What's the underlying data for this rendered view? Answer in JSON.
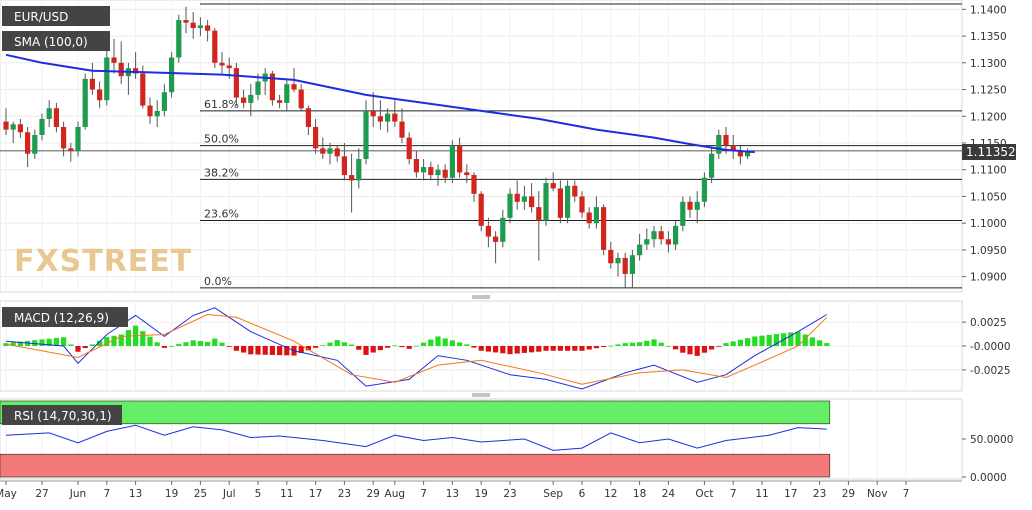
{
  "chart_data": [
    {
      "type": "candlestick",
      "symbol_label": "EUR/USD",
      "indicator_label": "SMA (100,0)",
      "watermark": "FXSTREET",
      "last_price_label": "1.11352",
      "last_price": 1.11352,
      "ylim": [
        1.0875,
        1.141
      ],
      "y_ticks": [
        "1.1400",
        "1.1350",
        "1.1300",
        "1.1250",
        "1.1200",
        "1.1150",
        "1.1100",
        "1.1050",
        "1.1000",
        "1.0950",
        "1.0900"
      ],
      "fib_levels": [
        {
          "label": "61.8%",
          "value": 1.121
        },
        {
          "label": "50.0%",
          "value": 1.1145
        },
        {
          "label": "38.2%",
          "value": 1.1082
        },
        {
          "label": "23.6%",
          "value": 1.1005
        },
        {
          "label": "0.0%",
          "value": 1.0879
        }
      ],
      "candles": [
        [
          1.119,
          1.1215,
          1.1165,
          1.1175
        ],
        [
          1.1175,
          1.119,
          1.115,
          1.1185
        ],
        [
          1.1185,
          1.1195,
          1.116,
          1.117
        ],
        [
          1.117,
          1.118,
          1.1105,
          1.113
        ],
        [
          1.113,
          1.1175,
          1.112,
          1.1165
        ],
        [
          1.1165,
          1.1205,
          1.1155,
          1.1195
        ],
        [
          1.1195,
          1.123,
          1.118,
          1.1215
        ],
        [
          1.1215,
          1.1225,
          1.117,
          1.118
        ],
        [
          1.118,
          1.119,
          1.1125,
          1.114
        ],
        [
          1.114,
          1.115,
          1.1115,
          1.1135
        ],
        [
          1.1135,
          1.119,
          1.1125,
          1.118
        ],
        [
          1.118,
          1.128,
          1.1175,
          1.127
        ],
        [
          1.127,
          1.13,
          1.124,
          1.125
        ],
        [
          1.125,
          1.1265,
          1.1215,
          1.123
        ],
        [
          1.123,
          1.133,
          1.122,
          1.131
        ],
        [
          1.131,
          1.1345,
          1.128,
          1.13
        ],
        [
          1.13,
          1.134,
          1.126,
          1.1275
        ],
        [
          1.1275,
          1.13,
          1.124,
          1.129
        ],
        [
          1.129,
          1.132,
          1.127,
          1.128
        ],
        [
          1.128,
          1.1295,
          1.1215,
          1.122
        ],
        [
          1.122,
          1.1235,
          1.1185,
          1.12
        ],
        [
          1.12,
          1.123,
          1.118,
          1.121
        ],
        [
          1.121,
          1.126,
          1.12,
          1.1245
        ],
        [
          1.1245,
          1.132,
          1.1235,
          1.131
        ],
        [
          1.131,
          1.139,
          1.13,
          1.138
        ],
        [
          1.138,
          1.1405,
          1.1355,
          1.1375
        ],
        [
          1.1375,
          1.1395,
          1.1345,
          1.1365
        ],
        [
          1.1365,
          1.1385,
          1.135,
          1.137
        ],
        [
          1.137,
          1.138,
          1.134,
          1.136
        ],
        [
          1.136,
          1.1365,
          1.129,
          1.13
        ],
        [
          1.13,
          1.132,
          1.128,
          1.1295
        ],
        [
          1.1295,
          1.131,
          1.127,
          1.129
        ],
        [
          1.129,
          1.13,
          1.122,
          1.1235
        ],
        [
          1.1235,
          1.125,
          1.1215,
          1.1225
        ],
        [
          1.1225,
          1.126,
          1.12,
          1.124
        ],
        [
          1.124,
          1.128,
          1.123,
          1.1265
        ],
        [
          1.1265,
          1.129,
          1.124,
          1.128
        ],
        [
          1.128,
          1.1285,
          1.122,
          1.123
        ],
        [
          1.123,
          1.124,
          1.1215,
          1.1225
        ],
        [
          1.1225,
          1.127,
          1.121,
          1.126
        ],
        [
          1.126,
          1.129,
          1.1245,
          1.125
        ],
        [
          1.125,
          1.126,
          1.121,
          1.1215
        ],
        [
          1.1215,
          1.122,
          1.1165,
          1.118
        ],
        [
          1.118,
          1.1195,
          1.113,
          1.114
        ],
        [
          1.114,
          1.116,
          1.112,
          1.113
        ],
        [
          1.113,
          1.115,
          1.111,
          1.114
        ],
        [
          1.114,
          1.1145,
          1.1115,
          1.1125
        ],
        [
          1.1125,
          1.115,
          1.108,
          1.109
        ],
        [
          1.109,
          1.113,
          1.102,
          1.108
        ],
        [
          1.108,
          1.114,
          1.1065,
          1.112
        ],
        [
          1.112,
          1.123,
          1.111,
          1.121
        ],
        [
          1.121,
          1.1245,
          1.118,
          1.12
        ],
        [
          1.12,
          1.123,
          1.1175,
          1.119
        ],
        [
          1.119,
          1.1215,
          1.117,
          1.1205
        ],
        [
          1.1205,
          1.123,
          1.118,
          1.119
        ],
        [
          1.119,
          1.1215,
          1.115,
          1.116
        ],
        [
          1.116,
          1.117,
          1.111,
          1.112
        ],
        [
          1.112,
          1.1135,
          1.1085,
          1.1095
        ],
        [
          1.1095,
          1.112,
          1.108,
          1.1105
        ],
        [
          1.1105,
          1.1115,
          1.108,
          1.109
        ],
        [
          1.109,
          1.111,
          1.107,
          1.11
        ],
        [
          1.11,
          1.111,
          1.1075,
          1.1085
        ],
        [
          1.1085,
          1.1155,
          1.1075,
          1.1145
        ],
        [
          1.1145,
          1.116,
          1.1085,
          1.1095
        ],
        [
          1.1095,
          1.111,
          1.1075,
          1.109
        ],
        [
          1.109,
          1.1095,
          1.104,
          1.1055
        ],
        [
          1.1055,
          1.106,
          1.0985,
          1.0995
        ],
        [
          1.0995,
          1.101,
          1.0955,
          1.0975
        ],
        [
          1.0975,
          1.0985,
          1.0925,
          1.0965
        ],
        [
          1.0965,
          1.1025,
          1.0955,
          1.101
        ],
        [
          1.101,
          1.1065,
          1.1,
          1.1055
        ],
        [
          1.1055,
          1.108,
          1.1025,
          1.104
        ],
        [
          1.104,
          1.107,
          1.1025,
          1.105
        ],
        [
          1.105,
          1.1075,
          1.102,
          1.103
        ],
        [
          1.103,
          1.106,
          1.093,
          1.1005
        ],
        [
          1.1005,
          1.1085,
          1.0995,
          1.1075
        ],
        [
          1.1075,
          1.1095,
          1.106,
          1.1065
        ],
        [
          1.1065,
          1.108,
          1.1,
          1.101
        ],
        [
          1.101,
          1.108,
          1.1,
          1.107
        ],
        [
          1.107,
          1.108,
          1.104,
          1.105
        ],
        [
          1.105,
          1.106,
          1.101,
          1.102
        ],
        [
          1.102,
          1.103,
          1.099,
          1.1
        ],
        [
          1.1,
          1.105,
          1.099,
          1.103
        ],
        [
          1.103,
          1.1035,
          1.094,
          1.095
        ],
        [
          1.095,
          1.0965,
          1.0915,
          1.0925
        ],
        [
          1.0925,
          1.0945,
          1.09,
          1.0935
        ],
        [
          1.0935,
          1.0945,
          1.088,
          1.0905
        ],
        [
          1.0905,
          1.095,
          1.0878,
          1.094
        ],
        [
          1.094,
          1.098,
          1.093,
          1.096
        ],
        [
          1.096,
          1.099,
          1.095,
          1.097
        ],
        [
          1.097,
          1.0995,
          1.0955,
          1.0985
        ],
        [
          1.0985,
          1.0995,
          1.096,
          1.097
        ],
        [
          1.097,
          1.0985,
          1.0945,
          1.096
        ],
        [
          1.096,
          1.1005,
          1.095,
          1.0995
        ],
        [
          1.0995,
          1.105,
          1.0985,
          1.104
        ],
        [
          1.104,
          1.105,
          1.101,
          1.1025
        ],
        [
          1.1025,
          1.106,
          1.1,
          1.104
        ],
        [
          1.104,
          1.1095,
          1.103,
          1.1085
        ],
        [
          1.1085,
          1.114,
          1.1075,
          1.113
        ],
        [
          1.113,
          1.1175,
          1.112,
          1.1165
        ],
        [
          1.1165,
          1.118,
          1.113,
          1.1145
        ],
        [
          1.1145,
          1.1165,
          1.112,
          1.1135
        ],
        [
          1.1135,
          1.1145,
          1.111,
          1.1125
        ],
        [
          1.1125,
          1.114,
          1.112,
          1.1135
        ]
      ],
      "sma_100": [
        [
          0,
          1.1315
        ],
        [
          5,
          1.13
        ],
        [
          12,
          1.1285
        ],
        [
          20,
          1.1282
        ],
        [
          30,
          1.1278
        ],
        [
          40,
          1.1268
        ],
        [
          50,
          1.124
        ],
        [
          58,
          1.1225
        ],
        [
          66,
          1.121
        ],
        [
          74,
          1.1195
        ],
        [
          82,
          1.1175
        ],
        [
          90,
          1.116
        ],
        [
          95,
          1.1148
        ],
        [
          100,
          1.1137
        ],
        [
          104,
          1.1133
        ]
      ],
      "dates": [
        {
          "label": "May",
          "i": 0
        },
        {
          "label": "27",
          "i": 5
        },
        {
          "label": "Jun",
          "i": 10
        },
        {
          "label": "7",
          "i": 14
        },
        {
          "label": "13",
          "i": 18
        },
        {
          "label": "19",
          "i": 23
        },
        {
          "label": "25",
          "i": 27
        },
        {
          "label": "Jul",
          "i": 31
        },
        {
          "label": "5",
          "i": 35
        },
        {
          "label": "11",
          "i": 39
        },
        {
          "label": "17",
          "i": 43
        },
        {
          "label": "23",
          "i": 47
        },
        {
          "label": "29",
          "i": 51
        },
        {
          "label": "Aug",
          "i": 54
        },
        {
          "label": "7",
          "i": 58
        },
        {
          "label": "13",
          "i": 62
        },
        {
          "label": "19",
          "i": 66
        },
        {
          "label": "23",
          "i": 70
        },
        {
          "label": "Sep",
          "i": 76
        },
        {
          "label": "6",
          "i": 80
        },
        {
          "label": "12",
          "i": 84
        },
        {
          "label": "18",
          "i": 88
        },
        {
          "label": "24",
          "i": 92
        },
        {
          "label": "Oct",
          "i": 97
        },
        {
          "label": "7",
          "i": 101
        },
        {
          "label": "11",
          "i": 105
        },
        {
          "label": "17",
          "i": 109
        },
        {
          "label": "23",
          "i": 113
        },
        {
          "label": "29",
          "i": 117
        },
        {
          "label": "Nov",
          "i": 121
        },
        {
          "label": "7",
          "i": 125
        }
      ]
    },
    {
      "type": "macd",
      "indicator_label": "MACD (12,26,9)",
      "ylim": [
        -0.0045,
        0.0045
      ],
      "y_ticks": [
        "0.0025",
        "-0.0000",
        "-0.0025"
      ],
      "y_tick_values": [
        0.0025,
        0.0,
        -0.0025
      ],
      "macd": [
        [
          0,
          0.0005
        ],
        [
          8,
          0.0
        ],
        [
          10,
          -0.0018
        ],
        [
          14,
          0.0012
        ],
        [
          18,
          0.0032
        ],
        [
          22,
          0.001
        ],
        [
          26,
          0.0032
        ],
        [
          29,
          0.004
        ],
        [
          34,
          0.0015
        ],
        [
          40,
          -0.0005
        ],
        [
          46,
          -0.0015
        ],
        [
          50,
          -0.0042
        ],
        [
          56,
          -0.0035
        ],
        [
          60,
          -0.001
        ],
        [
          64,
          -0.0015
        ],
        [
          70,
          -0.003
        ],
        [
          75,
          -0.0035
        ],
        [
          80,
          -0.0045
        ],
        [
          86,
          -0.0028
        ],
        [
          90,
          -0.002
        ],
        [
          96,
          -0.0038
        ],
        [
          100,
          -0.003
        ],
        [
          104,
          -0.001
        ],
        [
          110,
          0.0015
        ],
        [
          114,
          0.0033
        ]
      ],
      "signal": [
        [
          0,
          0.0002
        ],
        [
          10,
          -0.0012
        ],
        [
          16,
          0.001
        ],
        [
          22,
          0.0012
        ],
        [
          28,
          0.0033
        ],
        [
          32,
          0.003
        ],
        [
          40,
          0.0005
        ],
        [
          48,
          -0.003
        ],
        [
          54,
          -0.0038
        ],
        [
          60,
          -0.002
        ],
        [
          66,
          -0.0015
        ],
        [
          74,
          -0.0028
        ],
        [
          80,
          -0.004
        ],
        [
          88,
          -0.0028
        ],
        [
          94,
          -0.0025
        ],
        [
          100,
          -0.0033
        ],
        [
          104,
          -0.002
        ],
        [
          110,
          0.0
        ],
        [
          114,
          0.003
        ]
      ],
      "histogram_color_pos": "#22dd22",
      "histogram_color_neg": "#dd1111"
    },
    {
      "type": "rsi",
      "indicator_label": "RSI (14,70,30,1)",
      "ylim": [
        0,
        100
      ],
      "y_ticks": [
        "50.0000",
        "0.0000"
      ],
      "y_tick_values": [
        50,
        0
      ],
      "overbought": 70,
      "oversold": 30,
      "rsi": [
        [
          0,
          55
        ],
        [
          6,
          58
        ],
        [
          10,
          45
        ],
        [
          14,
          60
        ],
        [
          18,
          68
        ],
        [
          22,
          55
        ],
        [
          26,
          66
        ],
        [
          30,
          62
        ],
        [
          34,
          52
        ],
        [
          38,
          54
        ],
        [
          44,
          48
        ],
        [
          50,
          40
        ],
        [
          54,
          55
        ],
        [
          58,
          48
        ],
        [
          62,
          52
        ],
        [
          66,
          46
        ],
        [
          72,
          50
        ],
        [
          76,
          35
        ],
        [
          80,
          38
        ],
        [
          84,
          58
        ],
        [
          88,
          45
        ],
        [
          92,
          50
        ],
        [
          96,
          38
        ],
        [
          100,
          48
        ],
        [
          106,
          55
        ],
        [
          110,
          65
        ],
        [
          114,
          63
        ]
      ]
    }
  ]
}
